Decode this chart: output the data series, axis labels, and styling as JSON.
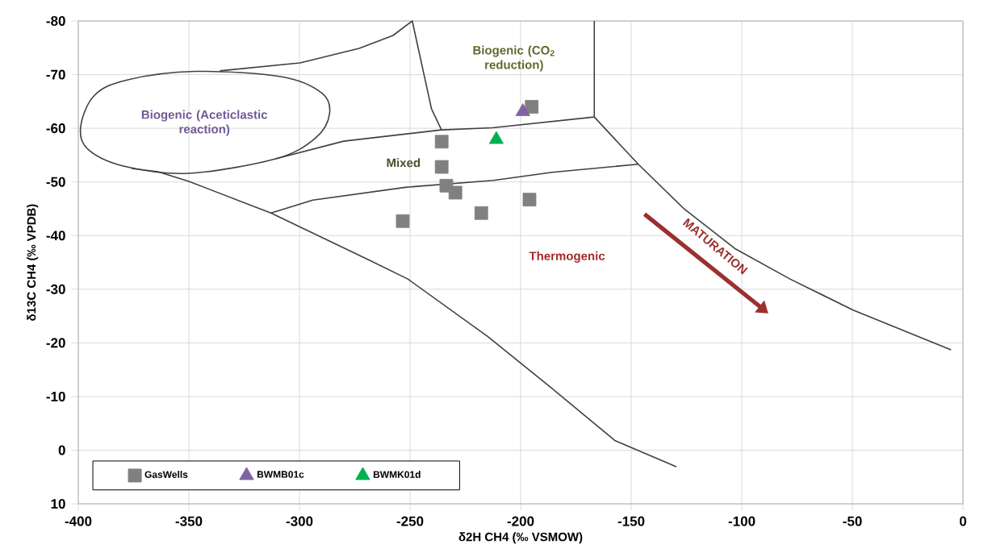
{
  "chart_data": {
    "type": "scatter",
    "xlabel": "δ2H  CH4 (‰ VSMOW)",
    "ylabel": "δ13C  CH4 (‰ VPDB)",
    "xlim": [
      -400,
      0
    ],
    "ylim": [
      10,
      -80
    ],
    "xticks": [
      -400,
      -350,
      -300,
      -250,
      -200,
      -150,
      -100,
      -50,
      0
    ],
    "yticks": [
      -80,
      -70,
      -60,
      -50,
      -40,
      -30,
      -20,
      -10,
      0,
      10
    ],
    "grid": true,
    "legend": "bottom left",
    "annotations": [
      "Biogenic (Aceticlastic reaction)",
      "Biogenic (CO$_{2}$ reduction)",
      "Mixed",
      "Thermogenic",
      "MATURATION"
    ],
    "series": [
      {
        "name": "GasWells",
        "marker": "square",
        "color": "#808080",
        "x": [
          -195,
          -235.7,
          -235.7,
          -233.6,
          -229.5,
          -253.3,
          -217.8,
          -196
        ],
        "values": [
          -64,
          -57.5,
          -52.8,
          -49.3,
          -48,
          -42.7,
          -44.2,
          -46.7
        ]
      },
      {
        "name": "BWMB01c",
        "marker": "triangle",
        "color": "#8064a2",
        "x": [
          -199
        ],
        "values": [
          -63.1
        ]
      },
      {
        "name": "BWMK01d",
        "marker": "triangle",
        "color": "#00b050",
        "x": [
          -211
        ],
        "values": [
          -57.9
        ]
      },
      {
        "type": "line",
        "marker": "none",
        "color": "#404040",
        "x": [
          -336,
          -299.7,
          -273,
          -257.7,
          -249,
          -240.3,
          -235.8
        ],
        "values": [
          -70.7,
          -72.2,
          -74.9,
          -77.3,
          -80,
          -63.6,
          -59.7
        ]
      },
      {
        "type": "line",
        "marker": "none",
        "color": "#404040",
        "x": [
          -310.8,
          -280,
          -235.8,
          -212.7,
          -166.7,
          -166.7
        ],
        "values": [
          -54.3,
          -57.6,
          -59.7,
          -60.1,
          -62.1,
          -80
        ]
      },
      {
        "type": "line",
        "marker": "none",
        "color": "#404040",
        "x": [
          -166.7,
          -146.8,
          -126.4,
          -103.2,
          -78.2,
          -49.6,
          -5.4
        ],
        "values": [
          -62.1,
          -53.3,
          -45.1,
          -37.6,
          -31.9,
          -26.1,
          -18.7
        ]
      },
      {
        "type": "line",
        "marker": "none",
        "color": "#404040",
        "x": [
          -312.9,
          -294,
          -252.1,
          -212.3,
          -185.8,
          -146.8
        ],
        "values": [
          -44.2,
          -46.6,
          -49,
          -50.3,
          -51.8,
          -53.3
        ]
      },
      {
        "type": "line",
        "marker": "none",
        "color": "#404040",
        "x": [
          -375.9,
          -364,
          -350,
          -312.9,
          -270.3,
          -251,
          -214.9,
          -185.8,
          -157.4,
          -129.6
        ],
        "values": [
          -52.5,
          -51.9,
          -50.1,
          -44.2,
          -35.8,
          -31.9,
          -21.2,
          -11.5,
          -1.8,
          3.1
        ]
      }
    ]
  }
}
